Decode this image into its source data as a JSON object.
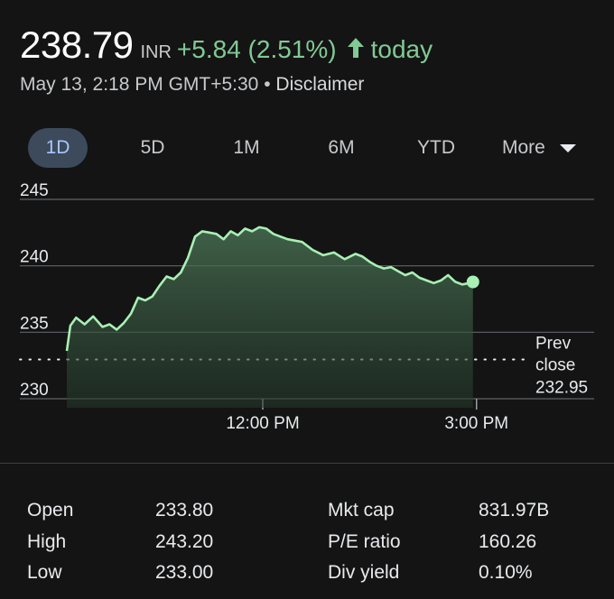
{
  "quote": {
    "price": "238.79",
    "currency": "INR",
    "change": "+5.84 (2.51%)",
    "direction_icon": "arrow-up-icon",
    "period": "today",
    "timestamp": "May 13, 2:18 PM GMT+5:30",
    "separator": "•",
    "disclaimer": "Disclaimer",
    "colors": {
      "positive": "#81c995",
      "tab_active_bg": "#3c4a5c",
      "tab_active_text": "#a8c7fa"
    }
  },
  "tabs": [
    {
      "label": "1D",
      "active": true
    },
    {
      "label": "5D",
      "active": false
    },
    {
      "label": "1M",
      "active": false
    },
    {
      "label": "6M",
      "active": false
    },
    {
      "label": "YTD",
      "active": false
    },
    {
      "label": "More",
      "active": false,
      "icon": "dropdown-caret-icon"
    }
  ],
  "chart_data": {
    "type": "area",
    "ylim": [
      230,
      245
    ],
    "y_ticks": [
      "245",
      "240",
      "235",
      "230"
    ],
    "x_ticks": [
      "12:00 PM",
      "3:00 PM"
    ],
    "x_range_hours": [
      9.25,
      15.5
    ],
    "x_tick_hours": [
      12,
      15
    ],
    "grid": true,
    "prev_close": {
      "label_line1": "Prev",
      "label_line2": "close",
      "value": "232.95",
      "y": 232.95
    },
    "series": [
      {
        "x": [
          9.25,
          9.3,
          9.38,
          9.5,
          9.62,
          9.75,
          9.85,
          9.95,
          10.05,
          10.15,
          10.25,
          10.35,
          10.45,
          10.55,
          10.65,
          10.75,
          10.85,
          10.95,
          11.05,
          11.15,
          11.25,
          11.35,
          11.45,
          11.55,
          11.65,
          11.75,
          11.85,
          11.95,
          12.05,
          12.15,
          12.25,
          12.35,
          12.45,
          12.55,
          12.7,
          12.85,
          13.0,
          13.15,
          13.3,
          13.4,
          13.5,
          13.6,
          13.7,
          13.8,
          13.9,
          14.0,
          14.1,
          14.2,
          14.3,
          14.4,
          14.5,
          14.6,
          14.7,
          14.8,
          14.9,
          14.95
        ],
        "y": [
          233.6,
          235.5,
          236.1,
          235.6,
          236.2,
          235.4,
          235.6,
          235.2,
          235.7,
          236.4,
          237.6,
          237.4,
          237.7,
          238.5,
          239.2,
          239.0,
          239.5,
          240.6,
          242.2,
          242.6,
          242.5,
          242.4,
          242.0,
          242.6,
          242.3,
          242.8,
          242.6,
          242.9,
          242.8,
          242.4,
          242.2,
          242.0,
          241.9,
          241.8,
          241.2,
          240.8,
          241.0,
          240.5,
          240.9,
          240.7,
          240.3,
          240.0,
          239.8,
          239.9,
          239.6,
          239.3,
          239.5,
          239.1,
          238.9,
          238.7,
          238.9,
          239.3,
          238.8,
          238.6,
          238.7,
          238.79
        ]
      }
    ]
  },
  "stats": {
    "left": [
      {
        "label": "Open",
        "value": "233.80"
      },
      {
        "label": "High",
        "value": "243.20"
      },
      {
        "label": "Low",
        "value": "233.00"
      }
    ],
    "right": [
      {
        "label": "Mkt cap",
        "value": "831.97B"
      },
      {
        "label": "P/E ratio",
        "value": "160.26"
      },
      {
        "label": "Div yield",
        "value": "0.10%"
      }
    ]
  }
}
